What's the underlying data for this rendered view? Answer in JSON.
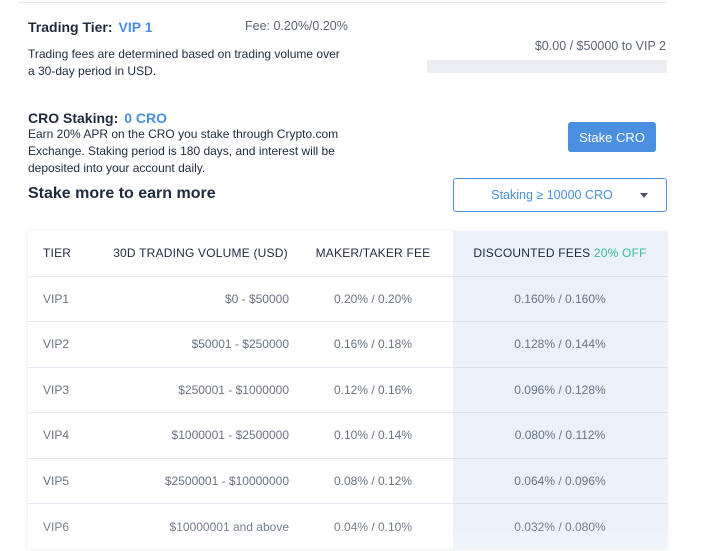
{
  "trading_tier": {
    "label": "Trading Tier:",
    "value": "VIP 1",
    "fee": "Fee: 0.20%/0.20%",
    "description": "Trading fees are determined based on trading volume over a 30-day period in USD.",
    "progress_text": "$0.00 / $50000 to VIP 2",
    "progress_fraction": 0
  },
  "cro_staking": {
    "label": "CRO Staking:",
    "value": "0 CRO",
    "description": "Earn 20% APR on the CRO you stake through Crypto.com Exchange. Staking period is 180 days, and interest will be deposited into your account daily.",
    "stake_button": "Stake CRO",
    "stake_more_heading": "Stake more to earn more",
    "select_value": "Staking ≥ 10000 CRO"
  },
  "fee_table": {
    "headers": {
      "tier": "TIER",
      "volume": "30D TRADING VOLUME (USD)",
      "fee": "MAKER/TAKER FEE",
      "discounted": "DISCOUNTED FEES",
      "off": "20% OFF"
    },
    "rows": [
      {
        "tier": "VIP1",
        "volume": "$0 - $50000",
        "fee": "0.20% / 0.20%",
        "discounted": "0.160% / 0.160%"
      },
      {
        "tier": "VIP2",
        "volume": "$50001 - $250000",
        "fee": "0.16% / 0.18%",
        "discounted": "0.128% / 0.144%"
      },
      {
        "tier": "VIP3",
        "volume": "$250001 - $1000000",
        "fee": "0.12% / 0.16%",
        "discounted": "0.096% / 0.128%"
      },
      {
        "tier": "VIP4",
        "volume": "$1000001 - $2500000",
        "fee": "0.10% / 0.14%",
        "discounted": "0.080% / 0.112%"
      },
      {
        "tier": "VIP5",
        "volume": "$2500001 - $10000000",
        "fee": "0.08% / 0.12%",
        "discounted": "0.064% / 0.096%"
      },
      {
        "tier": "VIP6",
        "volume": "$10000001 and above",
        "fee": "0.04% / 0.10%",
        "discounted": "0.032% / 0.080%"
      }
    ]
  },
  "colors": {
    "accent": "#4a8fe0",
    "discount_green": "#39b89a",
    "highlight_column": "#eaf1fb",
    "progress_track": "#eceef1"
  }
}
